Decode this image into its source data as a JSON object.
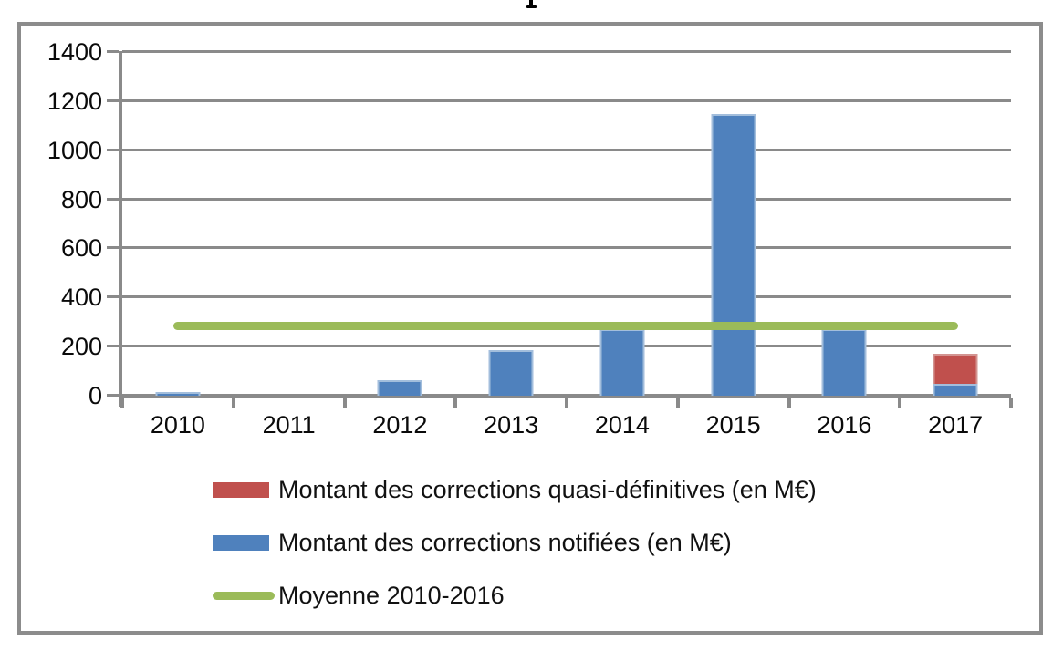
{
  "cropped_title": {
    "visible_fragment": "descender tip of one letter of a cut-off chart title"
  },
  "chart_data": {
    "type": "bar",
    "stacked": true,
    "title": "",
    "xlabel": "",
    "ylabel": "",
    "categories": [
      "2010",
      "2011",
      "2012",
      "2013",
      "2014",
      "2015",
      "2016",
      "2017"
    ],
    "series": [
      {
        "name": "Montant des corrections notifiées (en M€)",
        "color": "#4F81BD",
        "border_color": "#A3BEDC",
        "values": [
          15,
          0,
          62,
          185,
          270,
          1148,
          270,
          48
        ]
      },
      {
        "name": "Montant des corrections quasi-définitives (en M€)",
        "color": "#C0504D",
        "border_color": "#D39491",
        "values": [
          0,
          0,
          0,
          0,
          0,
          0,
          0,
          122
        ]
      }
    ],
    "average_line": {
      "label": "Moyenne 2010-2016",
      "value": 285,
      "color": "#9BBB59",
      "x_start_frac": 0.0575,
      "x_end_frac": 0.9405
    },
    "ylim": [
      0,
      1400
    ],
    "yticks": [
      0,
      200,
      400,
      600,
      800,
      1000,
      1200,
      1400
    ],
    "grid": true,
    "legend_position": "bottom",
    "legend": [
      {
        "label": "Montant des corrections quasi-définitives (en M€)",
        "swatch": "red-rect",
        "color": "#C0504D"
      },
      {
        "label": "Montant des corrections notifiées (en M€)",
        "swatch": "blue-rect",
        "color": "#4F81BD"
      },
      {
        "label": "Moyenne 2010-2016",
        "swatch": "green-line",
        "color": "#9BBB59"
      }
    ],
    "axis_color": "#8a8a8a",
    "gridline_color": "#8a8a8a",
    "text_color": "#0a0a0a"
  }
}
